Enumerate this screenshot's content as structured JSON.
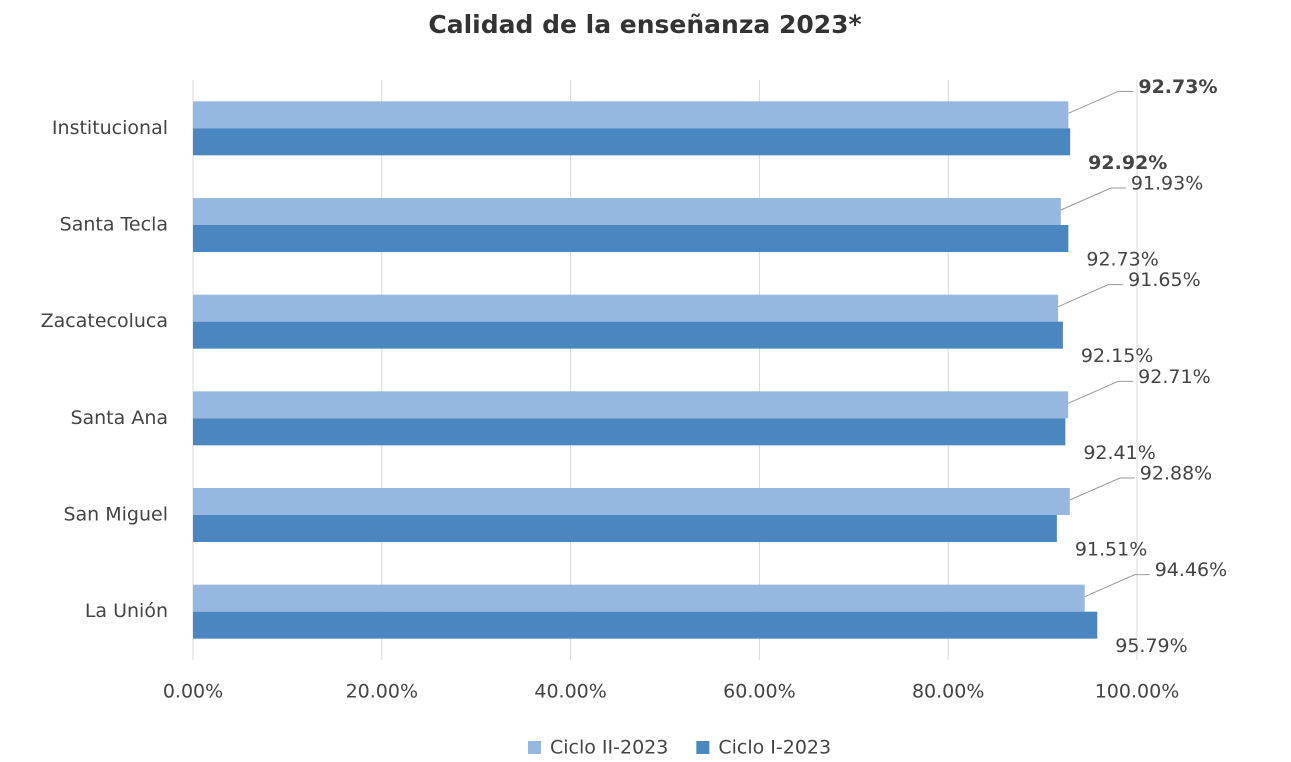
{
  "chart_data": {
    "type": "barh",
    "title": "Calidad de la enseñanza 2023*",
    "categories": [
      "Institucional",
      "Santa Tecla",
      "Zacatecoluca",
      "Santa Ana",
      "San Miguel",
      "La Unión"
    ],
    "series": [
      {
        "name": "Ciclo II-2023",
        "color": "#95b7e0",
        "values": [
          92.73,
          91.93,
          91.65,
          92.71,
          92.88,
          94.46
        ],
        "value_labels": [
          "92.73%",
          "91.93%",
          "91.65%",
          "92.71%",
          "92.88%",
          "94.46%"
        ]
      },
      {
        "name": "Ciclo I-2023",
        "color": "#4a86c0",
        "values": [
          92.92,
          92.73,
          92.15,
          92.41,
          91.51,
          95.79
        ],
        "value_labels": [
          "92.92%",
          "92.73%",
          "92.15%",
          "92.41%",
          "91.51%",
          "95.79%"
        ]
      }
    ],
    "xlim": [
      0,
      100
    ],
    "xticks": [
      {
        "value": 0,
        "label": "0.00%"
      },
      {
        "value": 20,
        "label": "20.00%"
      },
      {
        "value": 40,
        "label": "40.00%"
      },
      {
        "value": 60,
        "label": "60.00%"
      },
      {
        "value": 80,
        "label": "80.00%"
      },
      {
        "value": 100,
        "label": "100.00%"
      }
    ],
    "grid": true,
    "legend": "bottom"
  }
}
